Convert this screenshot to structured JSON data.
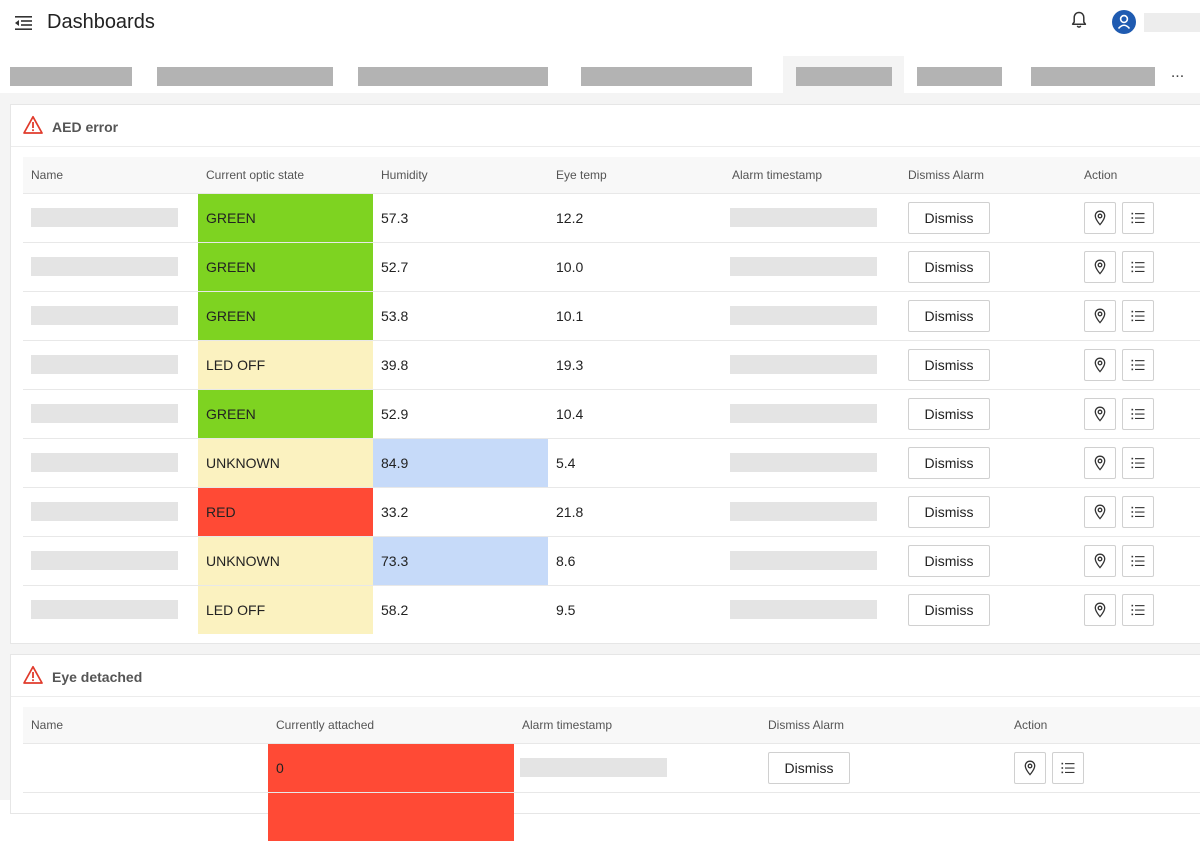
{
  "header": {
    "title": "Dashboards"
  },
  "tabs_more_label": "...",
  "colors": {
    "green": "#7ed321",
    "yellow": "#fbf2c0",
    "red": "#ff4a35",
    "blue": "#c6daf9",
    "avatar": "#1f5bb1"
  },
  "icons": {
    "menu": "menu-collapse-icon",
    "bell": "bell-icon",
    "avatar": "user-icon",
    "warning": "warning-triangle-icon",
    "location": "location-pin-icon",
    "list": "list-icon"
  },
  "aed": {
    "title": "AED error",
    "columns": [
      "Name",
      "Current optic state",
      "Humidity",
      "Eye temp",
      "Alarm timestamp",
      "Dismiss Alarm",
      "Action"
    ],
    "dismiss_label": "Dismiss",
    "rows": [
      {
        "state": "GREEN",
        "state_color": "green",
        "humidity": "57.3",
        "humidity_color": "",
        "eye_temp": "12.2"
      },
      {
        "state": "GREEN",
        "state_color": "green",
        "humidity": "52.7",
        "humidity_color": "",
        "eye_temp": "10.0"
      },
      {
        "state": "GREEN",
        "state_color": "green",
        "humidity": "53.8",
        "humidity_color": "",
        "eye_temp": "10.1"
      },
      {
        "state": "LED OFF",
        "state_color": "yellow",
        "humidity": "39.8",
        "humidity_color": "",
        "eye_temp": "19.3"
      },
      {
        "state": "GREEN",
        "state_color": "green",
        "humidity": "52.9",
        "humidity_color": "",
        "eye_temp": "10.4"
      },
      {
        "state": "UNKNOWN",
        "state_color": "yellow",
        "humidity": "84.9",
        "humidity_color": "blue",
        "eye_temp": "5.4"
      },
      {
        "state": "RED",
        "state_color": "red",
        "humidity": "33.2",
        "humidity_color": "",
        "eye_temp": "21.8"
      },
      {
        "state": "UNKNOWN",
        "state_color": "yellow",
        "humidity": "73.3",
        "humidity_color": "blue",
        "eye_temp": "8.6"
      },
      {
        "state": "LED OFF",
        "state_color": "yellow",
        "humidity": "58.2",
        "humidity_color": "",
        "eye_temp": "9.5"
      }
    ]
  },
  "eye": {
    "title": "Eye detached",
    "columns": [
      "Name",
      "Currently attached",
      "Alarm timestamp",
      "Dismiss Alarm",
      "Action"
    ],
    "dismiss_label": "Dismiss",
    "rows": [
      {
        "attached": "0",
        "attached_color": "red"
      },
      {
        "attached": "",
        "attached_color": "red"
      }
    ]
  }
}
